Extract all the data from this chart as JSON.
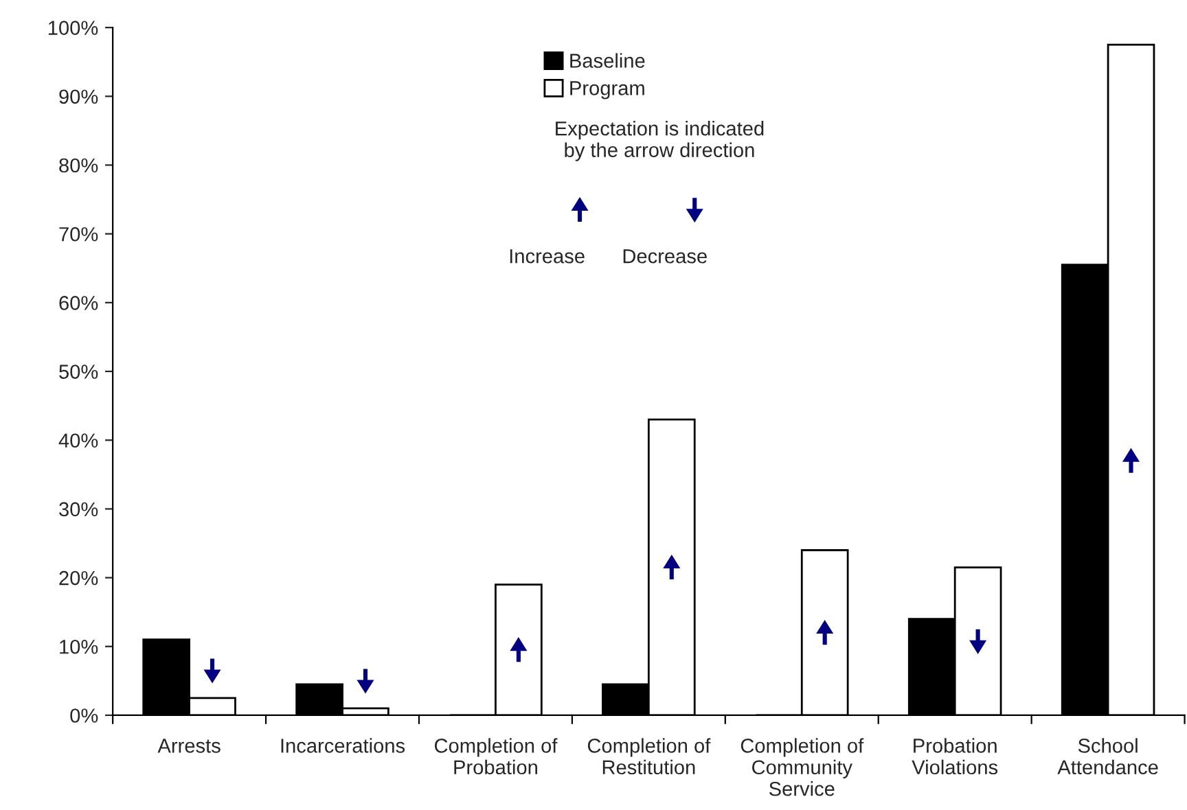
{
  "chart_data": {
    "type": "bar",
    "categories": [
      "Arrests",
      "Incarcerations",
      "Completion of\nProbation",
      "Completion of\nRestitution",
      "Completion of\nCommunity\nService",
      "Probation\nViolations",
      "School\nAttendance"
    ],
    "series": [
      {
        "name": "Baseline",
        "color": "#000000",
        "values": [
          11,
          4.5,
          0,
          4.5,
          0,
          14,
          65.5
        ]
      },
      {
        "name": "Program",
        "color": "#ffffff",
        "values": [
          2.5,
          1,
          19,
          43,
          24,
          21.5,
          97.5
        ]
      }
    ],
    "ylim": [
      0,
      100
    ],
    "yticks": [
      {
        "value": 0,
        "label": "0%"
      },
      {
        "value": 10,
        "label": "10%"
      },
      {
        "value": 20,
        "label": "20%"
      },
      {
        "value": 30,
        "label": "30%"
      },
      {
        "value": 40,
        "label": "40%"
      },
      {
        "value": 50,
        "label": "50%"
      },
      {
        "value": 60,
        "label": "60%"
      },
      {
        "value": 70,
        "label": "70%"
      },
      {
        "value": 80,
        "label": "80%"
      },
      {
        "value": 90,
        "label": "90%"
      },
      {
        "value": 100,
        "label": "100%"
      }
    ],
    "annotations": [
      "Expectation is indicated\nby the arrow direction",
      "Increase",
      "Decrease"
    ],
    "legend": "top",
    "grid": false
  }
}
